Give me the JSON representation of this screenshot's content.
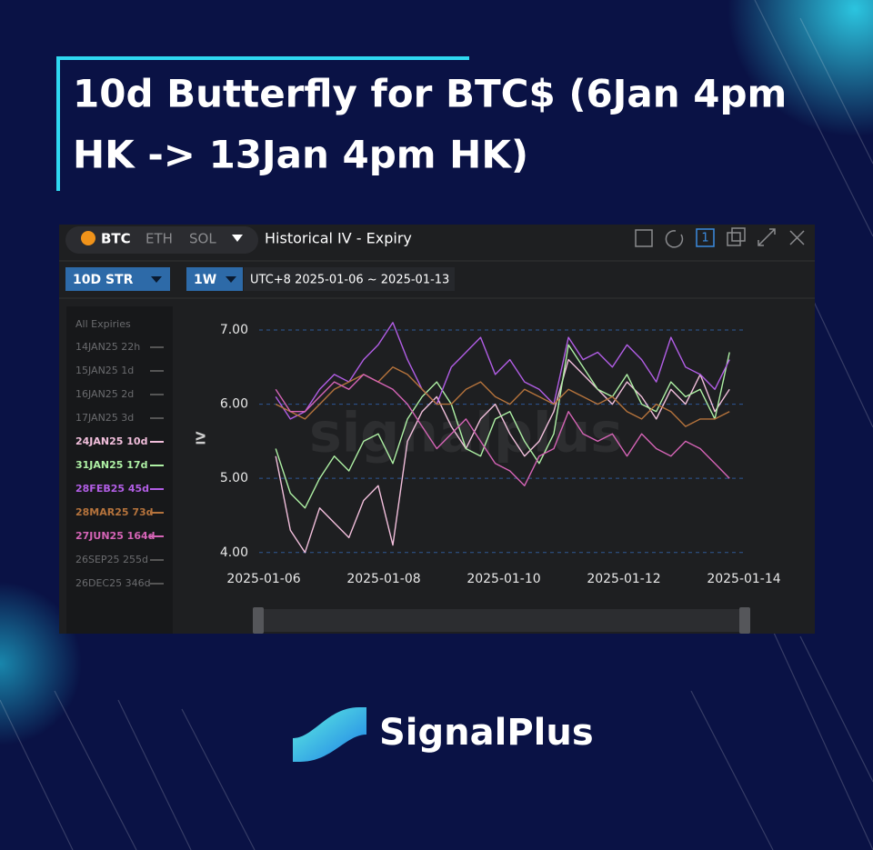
{
  "chart_data": {
    "type": "line",
    "title": [
      "10d Butterfly for BTC$ (6Jan 4pm",
      "HK -> 13Jan 4pm HK)"
    ],
    "coins": [
      "BTC",
      "ETH",
      "SOL"
    ],
    "panel_title": "Historical IV - Expiry",
    "panel_badge": "1",
    "metric": "10D STR",
    "period": "1W",
    "range_text": "UTC+8 2025-01-06 ~ 2025-01-13",
    "ylabel": "IV",
    "watermark": "signalplus",
    "brand": "SignalPlus",
    "legend_header": "All Expiries",
    "legend_top": [
      "14JAN25 22h",
      "15JAN25 1d",
      "16JAN25 2d",
      "17JAN25 3d"
    ],
    "legend_bottom": [
      "26SEP25 255d",
      "26DEC25 346d"
    ],
    "xlim": [
      "2025-01-06",
      "2025-01-14"
    ],
    "xticks": [
      "2025-01-06",
      "2025-01-08",
      "2025-01-10",
      "2025-01-12",
      "2025-01-14"
    ],
    "ylim": [
      3.85,
      7.3
    ],
    "yticks": [
      {
        "value": 4,
        "label": "4.00"
      },
      {
        "value": 5,
        "label": "5.00"
      },
      {
        "value": 6,
        "label": "6.00"
      },
      {
        "value": 7,
        "label": "7.00"
      }
    ],
    "grid": true,
    "series": [
      {
        "name": "24JAN25 10d",
        "color": "#f2bfdc",
        "values": [
          5.3,
          4.3,
          4.0,
          4.6,
          4.4,
          4.2,
          4.7,
          4.9,
          4.1,
          5.5,
          5.9,
          6.1,
          5.7,
          5.4,
          5.8,
          6.0,
          5.6,
          5.3,
          5.5,
          5.9,
          6.6,
          6.4,
          6.2,
          6.0,
          6.3,
          6.1,
          5.8,
          6.2,
          6.0,
          6.4,
          5.9,
          6.2
        ]
      },
      {
        "name": "31JAN25 17d",
        "color": "#aef0a4",
        "values": [
          5.4,
          4.8,
          4.6,
          5.0,
          5.3,
          5.1,
          5.5,
          5.6,
          5.2,
          5.8,
          6.1,
          6.3,
          6.0,
          5.4,
          5.3,
          5.8,
          5.9,
          5.5,
          5.2,
          5.6,
          6.8,
          6.5,
          6.2,
          6.1,
          6.4,
          6.0,
          5.9,
          6.3,
          6.1,
          6.2,
          5.8,
          6.7
        ]
      },
      {
        "name": "28FEB25 45d",
        "color": "#b25ee6",
        "values": [
          6.1,
          5.8,
          5.9,
          6.2,
          6.4,
          6.3,
          6.6,
          6.8,
          7.1,
          6.6,
          6.2,
          6.0,
          6.5,
          6.7,
          6.9,
          6.4,
          6.6,
          6.3,
          6.2,
          6.0,
          6.9,
          6.6,
          6.7,
          6.5,
          6.8,
          6.6,
          6.3,
          6.9,
          6.5,
          6.4,
          6.2,
          6.6
        ]
      },
      {
        "name": "28MAR25 73d",
        "color": "#b5733c",
        "values": [
          6.0,
          5.9,
          5.8,
          6.0,
          6.2,
          6.3,
          6.4,
          6.3,
          6.5,
          6.4,
          6.2,
          6.0,
          6.0,
          6.2,
          6.3,
          6.1,
          6.0,
          6.2,
          6.1,
          6.0,
          6.2,
          6.1,
          6.0,
          6.1,
          5.9,
          5.8,
          6.0,
          5.9,
          5.7,
          5.8,
          5.8,
          5.9
        ]
      },
      {
        "name": "27JUN25 164d",
        "color": "#d564b6",
        "values": [
          6.2,
          5.9,
          5.9,
          6.1,
          6.3,
          6.2,
          6.4,
          6.3,
          6.2,
          6.0,
          5.7,
          5.4,
          5.6,
          5.8,
          5.5,
          5.2,
          5.1,
          4.9,
          5.3,
          5.4,
          5.9,
          5.6,
          5.5,
          5.6,
          5.3,
          5.6,
          5.4,
          5.3,
          5.5,
          5.4,
          5.2,
          5.0
        ]
      }
    ]
  }
}
